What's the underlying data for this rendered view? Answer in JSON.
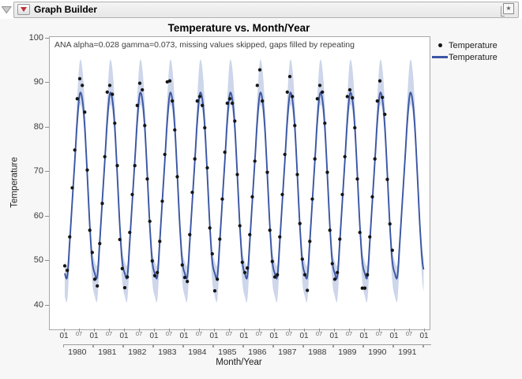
{
  "window": {
    "title": "Graph Builder",
    "disclosure_icon": "open-outline-triangle",
    "menu_icon": "red-triangle",
    "corner_icon": "star-window"
  },
  "chart_data": {
    "type": "line",
    "title": "Temperature vs. Month/Year",
    "annotation": "ANA alpha=0.028 gamma=0.073, missing values skipped, gaps filled by repeating",
    "xlabel": "Month/Year",
    "ylabel": "Temperature",
    "ylim": [
      37,
      101
    ],
    "yticks": [
      100,
      90,
      80,
      70,
      60,
      50,
      40
    ],
    "x_start": "1980-01",
    "x_tick_month_labels": [
      "01",
      "07"
    ],
    "x_terminal_label": "01",
    "years": [
      "1980",
      "1981",
      "1982",
      "1983",
      "1984",
      "1985",
      "1986",
      "1987",
      "1988",
      "1989",
      "1990",
      "1991"
    ],
    "grid": false,
    "legend_position": "right",
    "legend": [
      {
        "marker": "point",
        "label": "Temperature"
      },
      {
        "marker": "line",
        "label": "Temperature"
      }
    ],
    "series": [
      {
        "name": "Temperature observations",
        "type": "scatter",
        "start": "1980-01",
        "monthly_values": [
          49,
          48,
          55.5,
          66.5,
          75,
          86.5,
          91,
          89.5,
          83.5,
          70.5,
          57,
          52,
          46,
          44.5,
          54,
          63,
          73.5,
          88,
          89.5,
          87.5,
          81,
          71.5,
          54.9,
          48.4,
          44.1,
          46.5,
          56.5,
          65,
          71.5,
          85,
          90,
          88.5,
          80.5,
          68.5,
          59,
          50.1,
          46.8,
          47.5,
          54.5,
          63.5,
          74,
          90.3,
          90.5,
          86,
          79.5,
          69,
          null,
          49.2,
          46.4,
          45.5,
          56,
          65.5,
          73,
          86,
          87,
          85,
          80,
          71,
          57.5,
          51.7,
          43.4,
          46,
          55,
          64,
          74.5,
          85.5,
          86.5,
          85.5,
          81.5,
          69.5,
          58,
          49.8,
          47.5,
          48.5,
          56,
          64.5,
          72.5,
          89.5,
          93,
          86,
          null,
          70,
          57,
          50,
          46.5,
          47,
          55.5,
          65,
          74,
          88,
          91.5,
          87,
          80.5,
          69.5,
          58.5,
          50.5,
          47,
          43.5,
          54.5,
          64,
          73,
          86.5,
          89.5,
          88,
          81,
          70,
          57,
          49.5,
          46,
          47.5,
          55,
          65,
          73.5,
          87,
          88.5,
          86.7,
          80,
          68.5,
          56.5,
          44,
          44,
          47,
          55.5,
          64.5,
          73,
          86,
          90.5,
          86.8,
          83,
          68.4,
          58.4,
          52.5
        ]
      },
      {
        "name": "Temperature smoother",
        "type": "line_with_band",
        "seasonal_fit_by_month": [
          47.3,
          46.6,
          54.5,
          63.5,
          72.5,
          81.5,
          87.6,
          86.4,
          80.2,
          69.5,
          58.0,
          50.0
        ],
        "fit_end_month_index": 143.7,
        "band": {
          "base": 1.3,
          "k_up": 0.3,
          "k_dn": 0.19,
          "mid": 67.5
        }
      }
    ],
    "colors": {
      "line": "#3a55a3",
      "band": "#cdd6ea",
      "point": "#151515",
      "plot_border": "#a9a9a9",
      "surround": "#f7f7f7",
      "accent_red": "#be3038"
    }
  }
}
